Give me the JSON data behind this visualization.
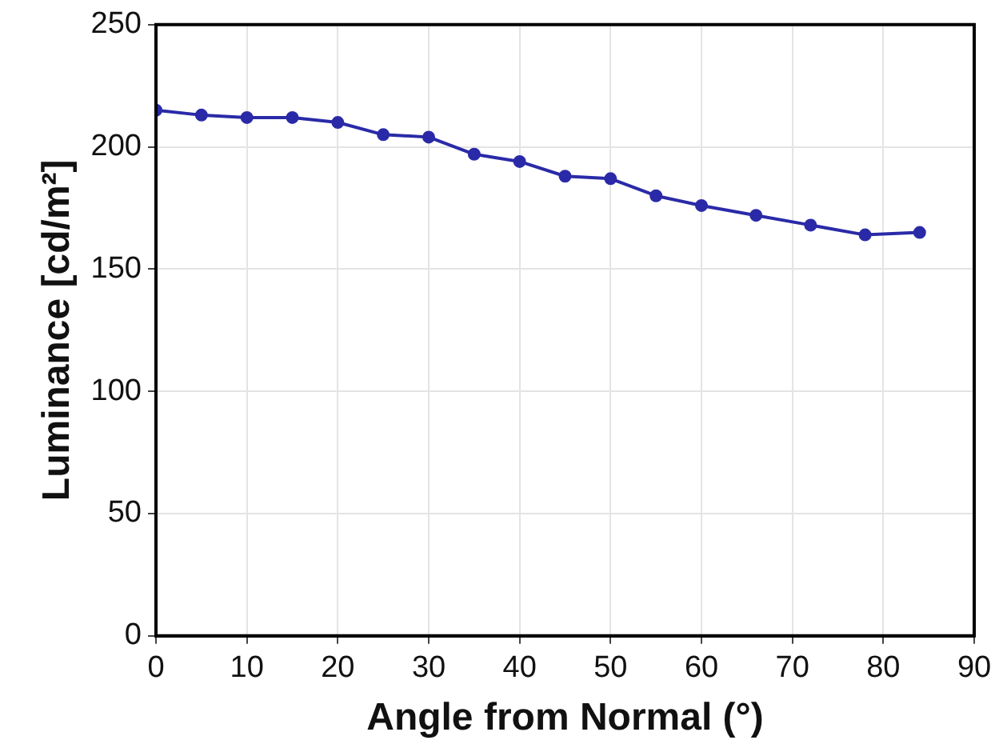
{
  "chart_data": {
    "type": "line",
    "xlabel": "Angle from Normal (°)",
    "ylabel": "Luminance [cd/m²]",
    "x": [
      0,
      5,
      10,
      15,
      20,
      25,
      30,
      35,
      40,
      45,
      50,
      55,
      60,
      66,
      72,
      78,
      84
    ],
    "series": [
      {
        "color": "#2a2aa8",
        "values": [
          215,
          213,
          212,
          212,
          210,
          205,
          204,
          197,
          194,
          188,
          187,
          180,
          176,
          172,
          168,
          164,
          165
        ]
      }
    ],
    "xlim": [
      0,
      90
    ],
    "xticks": [
      0,
      10,
      20,
      30,
      40,
      50,
      60,
      70,
      80,
      90
    ],
    "ylim": [
      0,
      250
    ],
    "yticks": [
      0,
      50,
      100,
      150,
      200,
      250
    ],
    "grid": true,
    "marker": "circle",
    "line_style": "solid"
  }
}
